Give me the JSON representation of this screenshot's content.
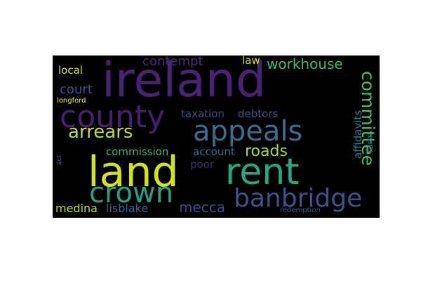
{
  "word_cloud": {
    "background": "#000000",
    "words": [
      {
        "id": "ireland",
        "text": "ireland",
        "color": "#4b2175"
      },
      {
        "id": "county",
        "text": "county",
        "color": "#481f70"
      },
      {
        "id": "land",
        "text": "land",
        "color": "#d2e21b"
      },
      {
        "id": "rent",
        "text": "rent",
        "color": "#25a883"
      },
      {
        "id": "appeals",
        "text": "appeals",
        "color": "#3c6c8f"
      },
      {
        "id": "crown",
        "text": "crown",
        "color": "#2a9f87"
      },
      {
        "id": "banbridge",
        "text": "banbridge",
        "color": "#3b528b"
      },
      {
        "id": "arrears",
        "text": "arrears",
        "color": "#c3dd29"
      },
      {
        "id": "roads",
        "text": "roads",
        "color": "#a8db34"
      },
      {
        "id": "committee",
        "text": "committee",
        "color": "#44bf70"
      },
      {
        "id": "workhouse",
        "text": "workhouse",
        "color": "#3fba72"
      },
      {
        "id": "contempt",
        "text": "contempt",
        "color": "#472c7a"
      },
      {
        "id": "court",
        "text": "court",
        "color": "#3d4e8a"
      },
      {
        "id": "mecca",
        "text": "mecca",
        "color": "#414487"
      },
      {
        "id": "lisblake",
        "text": "lisblake",
        "color": "#31688e"
      },
      {
        "id": "medina",
        "text": "medina",
        "color": "#bddf26"
      },
      {
        "id": "local",
        "text": "local",
        "color": "#d8e219"
      },
      {
        "id": "law",
        "text": "law",
        "color": "#cfe11c"
      },
      {
        "id": "taxation",
        "text": "taxation",
        "color": "#3e4989"
      },
      {
        "id": "debtors",
        "text": "debtors",
        "color": "#39568c"
      },
      {
        "id": "commission",
        "text": "commission",
        "color": "#35b779"
      },
      {
        "id": "account",
        "text": "account",
        "color": "#2c728e"
      },
      {
        "id": "poor",
        "text": "poor",
        "color": "#3b2a77"
      },
      {
        "id": "affidavits",
        "text": "affidavits",
        "color": "#277f8e"
      },
      {
        "id": "farm",
        "text": "farm",
        "color": "#2b758e"
      },
      {
        "id": "longford",
        "text": "longford",
        "color": "#fde725"
      },
      {
        "id": "act",
        "text": "act",
        "color": "#306a8e"
      },
      {
        "id": "redemption",
        "text": "redemption",
        "color": "#33608d"
      }
    ]
  }
}
